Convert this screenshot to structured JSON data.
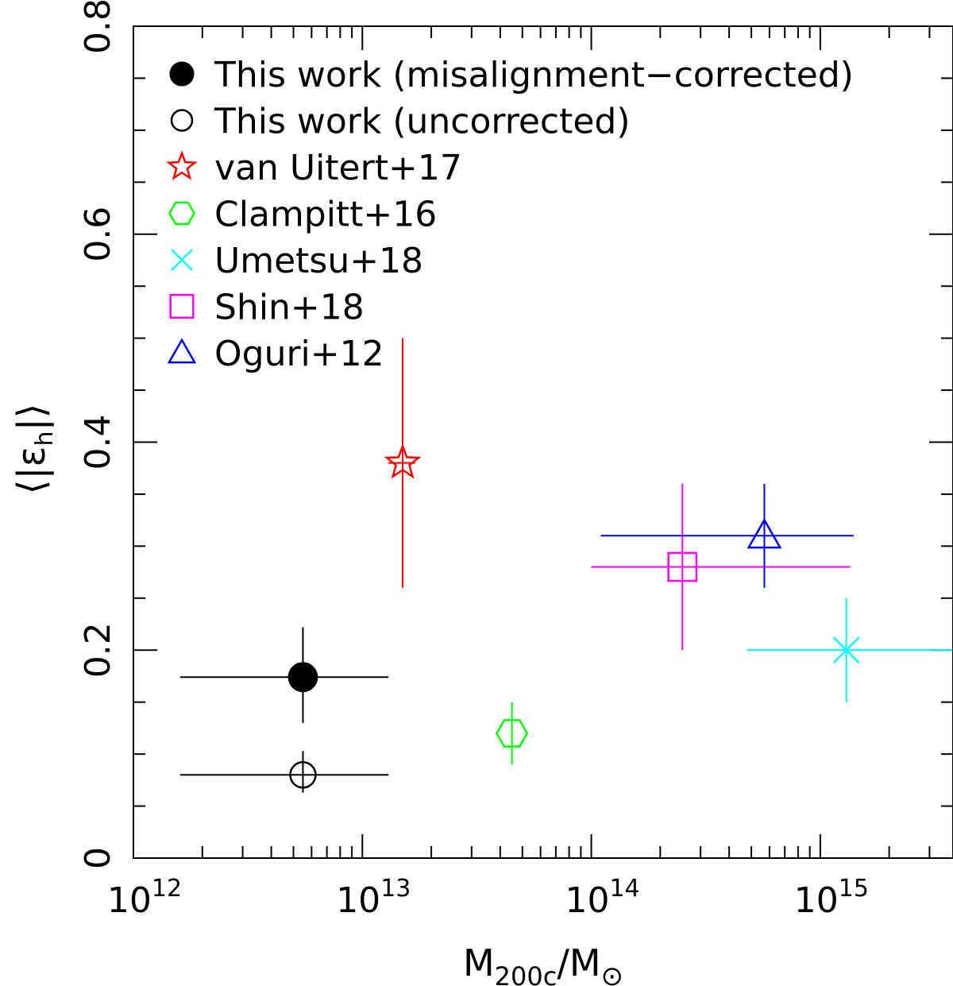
{
  "chart_data": {
    "type": "scatter",
    "xscale": "log",
    "xlim": [
      1000000000000.0,
      3800000000000000.0
    ],
    "ylim": [
      0,
      0.8
    ],
    "xlabel": {
      "main": "M",
      "sub": "200c",
      "rest": "/M",
      "sun": "⊙"
    },
    "ylabel": {
      "open": "⟨|ε",
      "sub": "h",
      "close": "|⟩"
    },
    "x_ticks": [
      {
        "value": 1000000000000.0,
        "base": "10",
        "exp": "12"
      },
      {
        "value": 10000000000000.0,
        "base": "10",
        "exp": "13"
      },
      {
        "value": 100000000000000.0,
        "base": "10",
        "exp": "14"
      },
      {
        "value": 1000000000000000.0,
        "base": "10",
        "exp": "15"
      }
    ],
    "y_ticks": [
      {
        "value": 0,
        "label": "0"
      },
      {
        "value": 0.2,
        "label": "0.2"
      },
      {
        "value": 0.4,
        "label": "0.4"
      },
      {
        "value": 0.6,
        "label": "0.6"
      },
      {
        "value": 0.8,
        "label": "0.8"
      }
    ],
    "legend_position": "top-left",
    "series": [
      {
        "name": "This work (misalignment−corrected)",
        "marker": "filled-circle",
        "color": "#000000",
        "x": 5500000000000.0,
        "y": 0.174,
        "xerr": [
          1600000000000.0,
          13000000000000.0
        ],
        "yerr": [
          0.13,
          0.222
        ]
      },
      {
        "name": "This work (uncorrected)",
        "marker": "open-circle",
        "color": "#000000",
        "x": 5500000000000.0,
        "y": 0.08,
        "xerr": [
          1600000000000.0,
          13000000000000.0
        ],
        "yerr": [
          0.063,
          0.103
        ]
      },
      {
        "name": "van Uitert+17",
        "marker": "star",
        "color": "#ff0000",
        "x": 15000000000000.0,
        "y": 0.38,
        "xerr": [
          13000000000000.0,
          17000000000000.0
        ],
        "yerr": [
          0.26,
          0.5
        ]
      },
      {
        "name": "Clampitt+16",
        "marker": "hexagon",
        "color": "#00ff00",
        "x": 45000000000000.0,
        "y": 0.12,
        "xerr": null,
        "yerr": [
          0.09,
          0.15
        ]
      },
      {
        "name": "Umetsu+18",
        "marker": "cross",
        "color": "#00ffff",
        "x": 1300000000000000.0,
        "y": 0.2,
        "xerr": [
          480000000000000.0,
          3800000000000000.0
        ],
        "yerr": [
          0.15,
          0.25
        ]
      },
      {
        "name": "Shin+18",
        "marker": "square",
        "color": "#ff00ff",
        "x": 250000000000000.0,
        "y": 0.28,
        "xerr": [
          100000000000000.0,
          1350000000000000.0
        ],
        "yerr": [
          0.2,
          0.36
        ]
      },
      {
        "name": "Oguri+12",
        "marker": "triangle",
        "color": "#0000ff",
        "x": 570000000000000.0,
        "y": 0.31,
        "xerr": [
          110000000000000.0,
          1400000000000000.0
        ],
        "yerr": [
          0.26,
          0.36
        ]
      }
    ]
  }
}
